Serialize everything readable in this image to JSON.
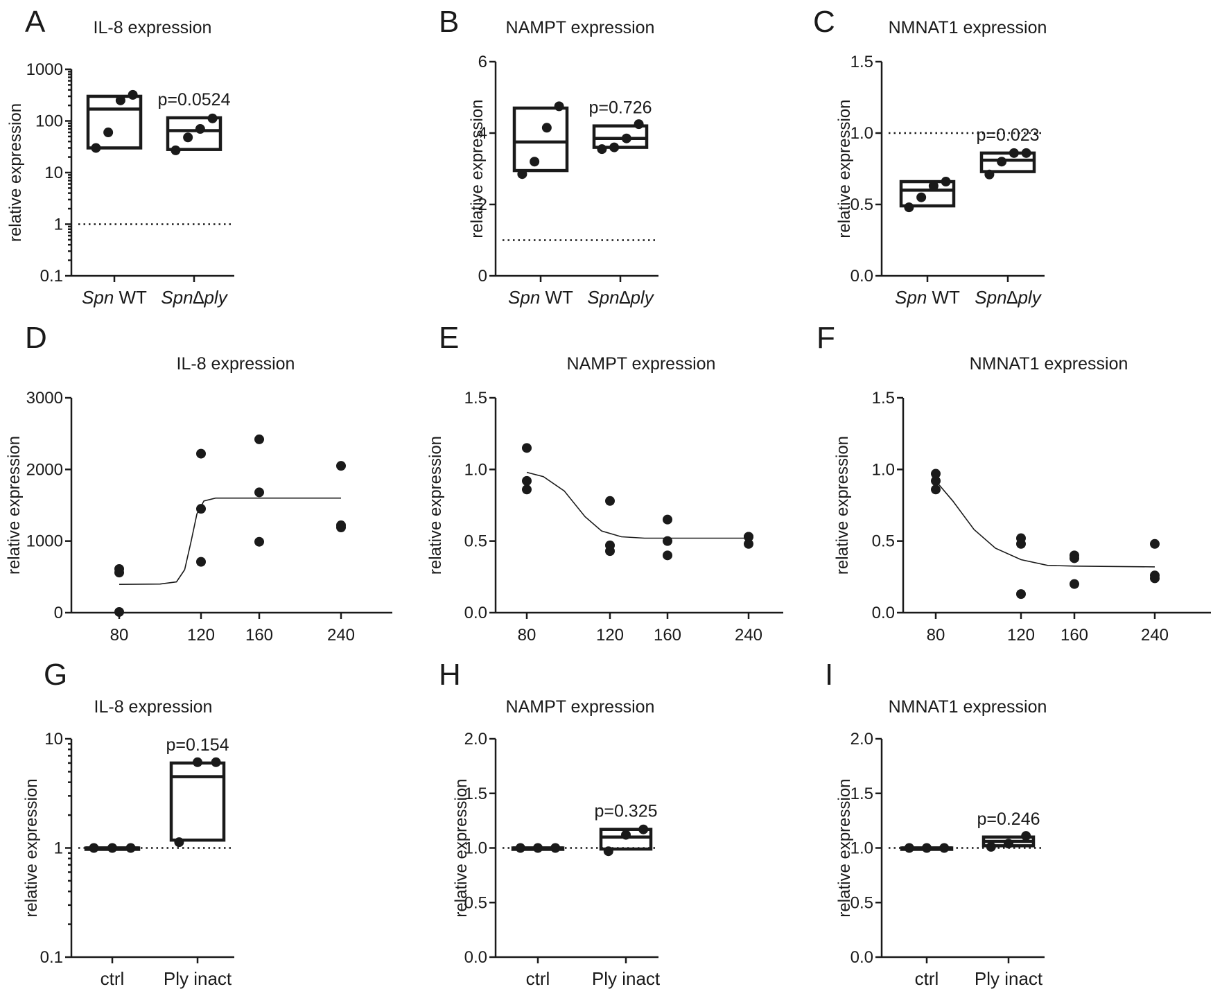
{
  "chart_data": [
    {
      "panel": "A",
      "type": "box",
      "title": "IL-8 expression",
      "ylabel": "relative expression",
      "yscale": "log",
      "ylim": [
        0.1,
        1000
      ],
      "yticks": [
        0.1,
        1,
        10,
        100,
        1000
      ],
      "yticklabels": [
        "0.1",
        "1",
        "10",
        "100",
        "1000"
      ],
      "refline": 1,
      "categories": [
        {
          "italic": "Spn",
          "rest": " WT"
        },
        {
          "italic": "Spn∆ply",
          "rest": ""
        }
      ],
      "groups": [
        {
          "min": 30,
          "median": 170,
          "max": 300,
          "points": [
            30,
            60,
            250,
            320
          ]
        },
        {
          "min": 28,
          "median": 65,
          "max": 115,
          "points": [
            27,
            48,
            70,
            112
          ]
        }
      ],
      "annotation": {
        "text": "p=0.0524",
        "group": 1
      }
    },
    {
      "panel": "B",
      "type": "box",
      "title": "NAMPT expression",
      "ylabel": "relative expression",
      "yscale": "linear",
      "ylim": [
        0,
        6
      ],
      "yticks": [
        0,
        2,
        4,
        6
      ],
      "yticklabels": [
        "0",
        "2",
        "4",
        "6"
      ],
      "refline": 1,
      "categories": [
        {
          "italic": "Spn",
          "rest": " WT"
        },
        {
          "italic": "Spn∆ply",
          "rest": ""
        }
      ],
      "groups": [
        {
          "min": 2.95,
          "median": 3.75,
          "max": 4.7,
          "points": [
            2.85,
            3.2,
            4.15,
            4.75
          ]
        },
        {
          "min": 3.6,
          "median": 3.85,
          "max": 4.2,
          "points": [
            3.55,
            3.6,
            3.85,
            4.25
          ]
        }
      ],
      "annotation": {
        "text": "p=0.726",
        "group": 1
      }
    },
    {
      "panel": "C",
      "type": "box",
      "title": "NMNAT1 expression",
      "ylabel": "relative expression",
      "yscale": "linear",
      "ylim": [
        0,
        1.5
      ],
      "yticks": [
        0,
        0.5,
        1,
        1.5
      ],
      "yticklabels": [
        "0.0",
        "0.5",
        "1.0",
        "1.5"
      ],
      "refline": 1,
      "categories": [
        {
          "italic": "Spn",
          "rest": " WT"
        },
        {
          "italic": "Spn∆ply",
          "rest": ""
        }
      ],
      "groups": [
        {
          "min": 0.49,
          "median": 0.6,
          "max": 0.66,
          "points": [
            0.48,
            0.55,
            0.63,
            0.66
          ]
        },
        {
          "min": 0.73,
          "median": 0.81,
          "max": 0.86,
          "points": [
            0.71,
            0.8,
            0.86,
            0.86
          ]
        }
      ],
      "annotation": {
        "text": "p=0.023",
        "group": 1
      }
    },
    {
      "panel": "D",
      "type": "scatter",
      "title": "IL-8 expression",
      "ylabel": "relative expression",
      "ylim": [
        0,
        3000
      ],
      "yticks": [
        0,
        1000,
        2000,
        3000
      ],
      "yticklabels": [
        "0",
        "1000",
        "2000",
        "3000"
      ],
      "xcategories": [
        "80",
        "120",
        "160",
        "240"
      ],
      "points": [
        [
          0,
          10
        ],
        [
          0,
          560
        ],
        [
          0,
          610
        ],
        [
          1,
          710
        ],
        [
          1,
          1450
        ],
        [
          1,
          2220
        ],
        [
          2,
          990
        ],
        [
          2,
          1680
        ],
        [
          2,
          2420
        ],
        [
          3,
          1190
        ],
        [
          3,
          1220
        ],
        [
          3,
          2050
        ]
      ],
      "fit": [
        [
          0.0,
          395
        ],
        [
          0.5,
          400
        ],
        [
          0.7,
          430
        ],
        [
          0.8,
          600
        ],
        [
          0.88,
          1000
        ],
        [
          0.95,
          1380
        ],
        [
          1.05,
          1560
        ],
        [
          1.25,
          1600
        ],
        [
          3.0,
          1600
        ]
      ]
    },
    {
      "panel": "E",
      "type": "scatter",
      "title": "NAMPT expression",
      "ylabel": "relative expression",
      "ylim": [
        0,
        1.5
      ],
      "yticks": [
        0,
        0.5,
        1,
        1.5
      ],
      "yticklabels": [
        "0.0",
        "0.5",
        "1.0",
        "1.5"
      ],
      "xcategories": [
        "80",
        "120",
        "160",
        "240"
      ],
      "points": [
        [
          0,
          0.86
        ],
        [
          0,
          0.92
        ],
        [
          0,
          1.15
        ],
        [
          1,
          0.43
        ],
        [
          1,
          0.47
        ],
        [
          1,
          0.78
        ],
        [
          2,
          0.4
        ],
        [
          2,
          0.5
        ],
        [
          2,
          0.65
        ],
        [
          3,
          0.48
        ],
        [
          3,
          0.53
        ],
        [
          3,
          0.53
        ]
      ],
      "fit": [
        [
          0.0,
          0.98
        ],
        [
          0.2,
          0.95
        ],
        [
          0.45,
          0.85
        ],
        [
          0.7,
          0.67
        ],
        [
          0.9,
          0.57
        ],
        [
          1.2,
          0.53
        ],
        [
          1.6,
          0.52
        ],
        [
          3.0,
          0.52
        ]
      ]
    },
    {
      "panel": "F",
      "type": "scatter",
      "title": "NMNAT1 expression",
      "ylabel": "relative expression",
      "ylim": [
        0,
        1.5
      ],
      "yticks": [
        0,
        0.5,
        1,
        1.5
      ],
      "yticklabels": [
        "0.0",
        "0.5",
        "1.0",
        "1.5"
      ],
      "xcategories": [
        "80",
        "120",
        "160",
        "240"
      ],
      "points": [
        [
          0,
          0.86
        ],
        [
          0,
          0.92
        ],
        [
          0,
          0.97
        ],
        [
          1,
          0.13
        ],
        [
          1,
          0.48
        ],
        [
          1,
          0.52
        ],
        [
          2,
          0.2
        ],
        [
          2,
          0.38
        ],
        [
          2,
          0.4
        ],
        [
          3,
          0.24
        ],
        [
          3,
          0.26
        ],
        [
          3,
          0.48
        ]
      ],
      "fit": [
        [
          0.0,
          0.92
        ],
        [
          0.2,
          0.78
        ],
        [
          0.45,
          0.58
        ],
        [
          0.7,
          0.45
        ],
        [
          1.0,
          0.37
        ],
        [
          1.5,
          0.33
        ],
        [
          2.0,
          0.325
        ],
        [
          3.0,
          0.32
        ]
      ]
    },
    {
      "panel": "G",
      "type": "box",
      "title": "IL-8 expression",
      "ylabel": "relative expression",
      "yscale": "log",
      "ylim": [
        0.1,
        10
      ],
      "yticks": [
        0.1,
        1,
        10
      ],
      "yticklabels": [
        "0.1",
        "1",
        "10"
      ],
      "refline": 1,
      "categories": [
        {
          "italic": "",
          "rest": "ctrl"
        },
        {
          "italic": "",
          "rest": "Ply inact"
        }
      ],
      "groups": [
        {
          "min": 1,
          "median": 1,
          "max": 1,
          "points": [
            1,
            1,
            1
          ]
        },
        {
          "min": 1.18,
          "median": 4.5,
          "max": 6.0,
          "points": [
            1.13,
            6.1,
            6.1
          ]
        }
      ],
      "annotation": {
        "text": "p=0.154",
        "group": 1
      }
    },
    {
      "panel": "H",
      "type": "box",
      "title": "NAMPT expression",
      "ylabel": "relative expression",
      "yscale": "linear",
      "ylim": [
        0,
        2
      ],
      "yticks": [
        0,
        0.5,
        1,
        1.5,
        2
      ],
      "yticklabels": [
        "0.0",
        "0.5",
        "1.0",
        "1.5",
        "2.0"
      ],
      "refline": 1,
      "categories": [
        {
          "italic": "",
          "rest": "ctrl"
        },
        {
          "italic": "",
          "rest": "Ply inact"
        }
      ],
      "groups": [
        {
          "min": 1,
          "median": 1,
          "max": 1,
          "points": [
            1,
            1,
            1
          ]
        },
        {
          "min": 0.99,
          "median": 1.1,
          "max": 1.17,
          "points": [
            0.97,
            1.12,
            1.17
          ]
        }
      ],
      "annotation": {
        "text": "p=0.325",
        "group": 1
      }
    },
    {
      "panel": "I",
      "type": "box",
      "title": "NMNAT1 expression",
      "ylabel": "relative expression",
      "yscale": "linear",
      "ylim": [
        0,
        2
      ],
      "yticks": [
        0,
        0.5,
        1,
        1.5,
        2
      ],
      "yticklabels": [
        "0.0",
        "0.5",
        "1.0",
        "1.5",
        "2.0"
      ],
      "refline": 1,
      "categories": [
        {
          "italic": "",
          "rest": "ctrl"
        },
        {
          "italic": "",
          "rest": "Ply inact"
        }
      ],
      "groups": [
        {
          "min": 1,
          "median": 1,
          "max": 1,
          "points": [
            1,
            1,
            1
          ]
        },
        {
          "min": 1.02,
          "median": 1.06,
          "max": 1.1,
          "points": [
            1.01,
            1.04,
            1.11
          ]
        }
      ],
      "annotation": {
        "text": "p=0.246",
        "group": 1
      }
    }
  ]
}
